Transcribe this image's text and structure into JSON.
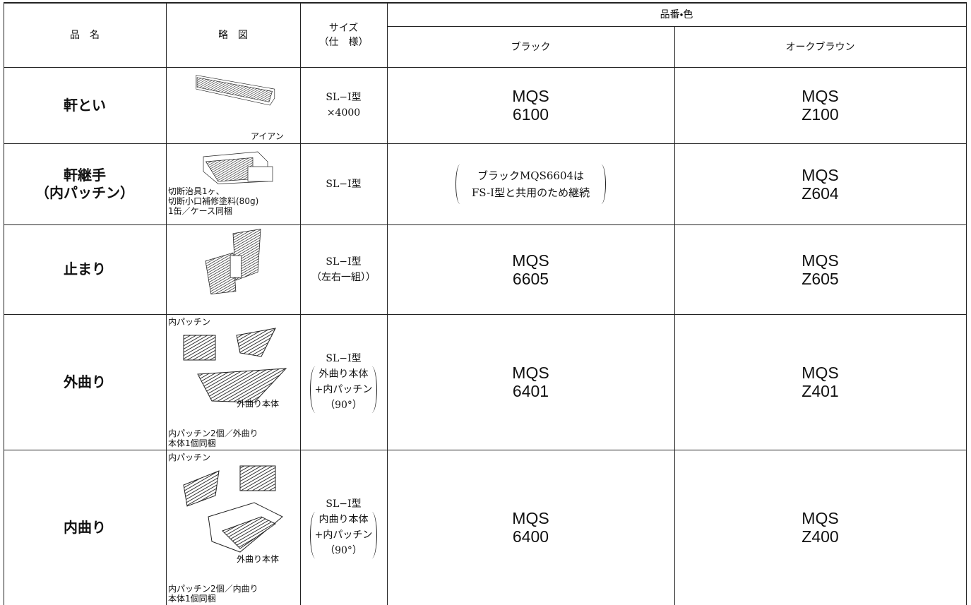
{
  "header": {
    "name": "品　名",
    "diagram": "略　図",
    "size": [
      "サイズ",
      "（仕　様）"
    ],
    "code": "品番・色",
    "colors": [
      "ブラック",
      "オークブラウン"
    ]
  },
  "rows": [
    {
      "name": [
        "軒とい"
      ],
      "captions": [
        "アイアン"
      ],
      "size": [
        "SL−I型",
        "×4000"
      ],
      "black": [
        "MQS",
        "6100"
      ],
      "oak": [
        "MQS",
        "Z100"
      ]
    },
    {
      "name": [
        "軒継手",
        "（内パッチン）"
      ],
      "captions": [
        "切断治具1ヶ、",
        "切断小口補修塗料(80g)",
        "1缶／ケース同梱"
      ],
      "size": [
        "SL−I型"
      ],
      "black": [
        "ブラックMQS6604は",
        "FS-I型と共用のため継続"
      ],
      "oak": [
        "MQS",
        "Z604"
      ]
    },
    {
      "name": [
        "止まり"
      ],
      "captions": [],
      "size": [
        "SL−I型",
        "（左右一組））"
      ],
      "black": [
        "MQS",
        "6605"
      ],
      "oak": [
        "MQS",
        "Z605"
      ]
    },
    {
      "name": [
        "外曲り"
      ],
      "captions": [
        "内パッチン",
        "外曲り本体",
        "内パッチン2個／外曲り",
        "本体1個同梱"
      ],
      "size": [
        "SL−I型",
        "外曲り本体",
        "+内パッチン",
        "（90°）"
      ],
      "black": [
        "MQS",
        "6401"
      ],
      "oak": [
        "MQS",
        "Z401"
      ]
    },
    {
      "name": [
        "内曲り"
      ],
      "captions": [
        "内パッチン",
        "外曲り本体",
        "内パッチン2個／内曲り",
        "本体1個同梱"
      ],
      "size": [
        "SL−I型",
        "内曲り本体",
        "+内パッチン",
        "（90°）"
      ],
      "black": [
        "MQS",
        "6400"
      ],
      "oak": [
        "MQS",
        "Z400"
      ]
    }
  ]
}
